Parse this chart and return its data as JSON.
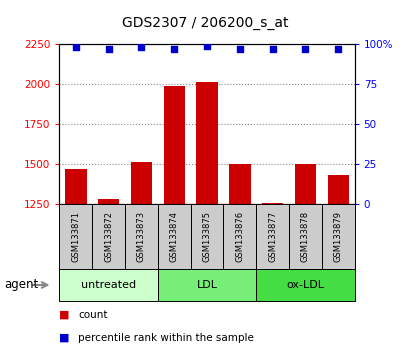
{
  "title": "GDS2307 / 206200_s_at",
  "samples": [
    "GSM133871",
    "GSM133872",
    "GSM133873",
    "GSM133874",
    "GSM133875",
    "GSM133876",
    "GSM133877",
    "GSM133878",
    "GSM133879"
  ],
  "counts": [
    1470,
    1280,
    1510,
    1990,
    2010,
    1500,
    1255,
    1500,
    1430
  ],
  "percentile_ranks": [
    98,
    97,
    98,
    97,
    99,
    97,
    97,
    97,
    97
  ],
  "ylim_left": [
    1250,
    2250
  ],
  "yticks_left": [
    1250,
    1500,
    1750,
    2000,
    2250
  ],
  "yticks_right": [
    0,
    25,
    50,
    75,
    100
  ],
  "ylim_right": [
    0,
    100
  ],
  "bar_color": "#cc0000",
  "dot_color": "#0000cc",
  "groups": [
    {
      "label": "untreated",
      "start": 0,
      "end": 3,
      "color": "#ccffcc"
    },
    {
      "label": "LDL",
      "start": 3,
      "end": 6,
      "color": "#77ee77"
    },
    {
      "label": "ox-LDL",
      "start": 6,
      "end": 9,
      "color": "#44dd44"
    }
  ],
  "agent_label": "agent",
  "count_legend": "count",
  "percentile_legend": "percentile rank within the sample",
  "background_color": "#ffffff",
  "label_area_color": "#cccccc",
  "grid_color": "#888888"
}
